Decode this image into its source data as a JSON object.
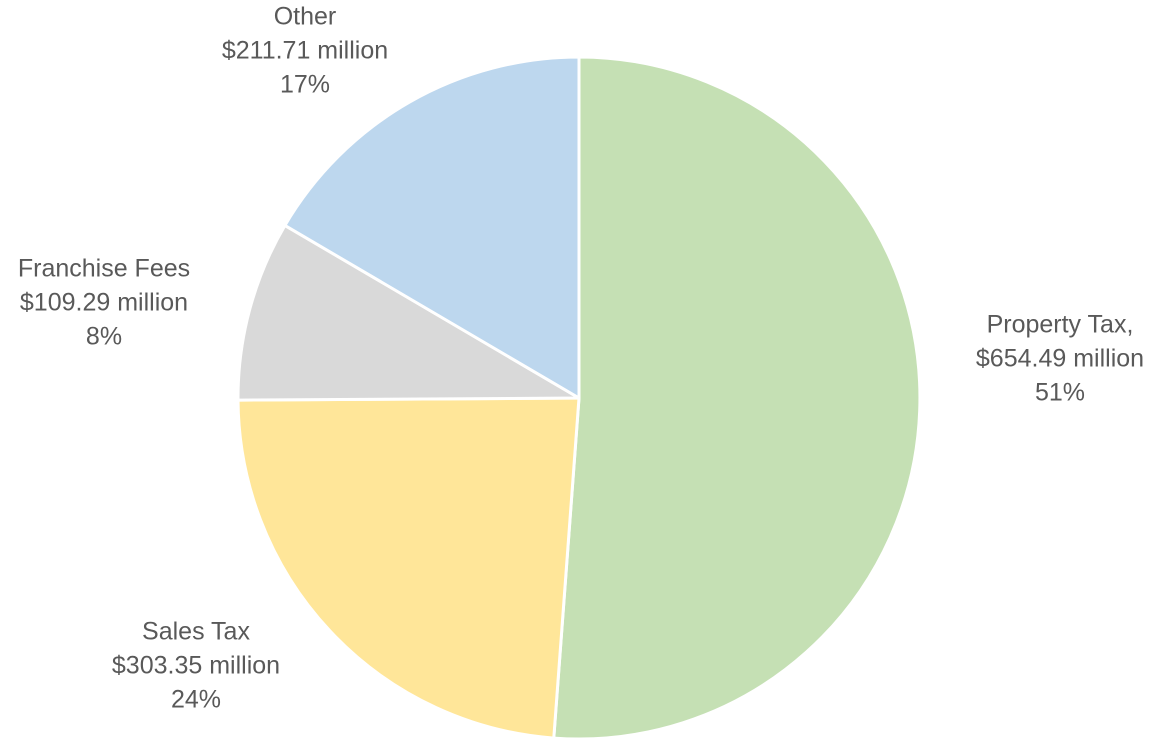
{
  "chart_data": {
    "type": "pie",
    "title": "",
    "unit": "$ million",
    "slices": [
      {
        "label": "Property Tax,",
        "amount": "$654.49 million",
        "percent": "51%",
        "value": 654.49,
        "color": "#c5e0b4"
      },
      {
        "label": "Sales Tax",
        "amount": "$303.35 million",
        "percent": "24%",
        "value": 303.35,
        "color": "#ffe699"
      },
      {
        "label": "Franchise Fees",
        "amount": "$109.29 million",
        "percent": "8%",
        "value": 109.29,
        "color": "#d9d9d9"
      },
      {
        "label": "Other",
        "amount": "$211.71 million",
        "percent": "17%",
        "value": 211.71,
        "color": "#bdd7ee"
      }
    ],
    "start": "12 o'clock",
    "direction": "clockwise",
    "legend": "none",
    "slice_border_color": "#ffffff"
  }
}
